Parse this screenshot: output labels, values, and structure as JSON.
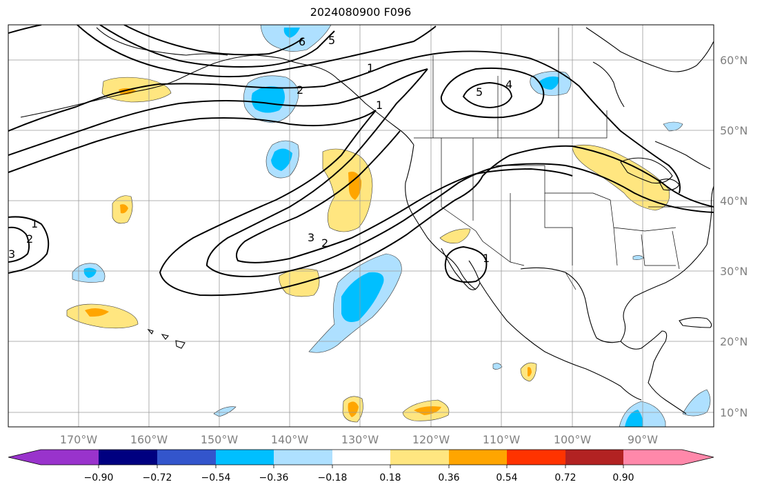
{
  "title": "2024080900 F096",
  "lon_labels": [
    "170°W",
    "160°W",
    "150°W",
    "140°W",
    "130°W",
    "120°W",
    "110°W",
    "100°W",
    "90°W"
  ],
  "lat_labels": [
    "60°N",
    "50°N",
    "40°N",
    "30°N",
    "20°N",
    "10°N"
  ],
  "colorbar": {
    "tick_labels": [
      "−0.90",
      "−0.72",
      "−0.54",
      "−0.36",
      "−0.18",
      "0.18",
      "0.36",
      "0.54",
      "0.72",
      "0.90"
    ],
    "colors": [
      "#9933cc",
      "#000080",
      "#3355cc",
      "#00bfff",
      "#aee0ff",
      "#ffffff",
      "#ffe680",
      "#ffa500",
      "#ff3300",
      "#b22222",
      "#ff88aa"
    ]
  },
  "contour_labels": [
    "6",
    "5",
    "1",
    "2",
    "5",
    "4",
    "1",
    "1",
    "2",
    "3",
    "3",
    "2",
    "1"
  ],
  "shading": {
    "light_blue": "#aee0ff",
    "blue": "#00bfff",
    "light_yellow": "#ffe680",
    "orange": "#ffa500"
  }
}
